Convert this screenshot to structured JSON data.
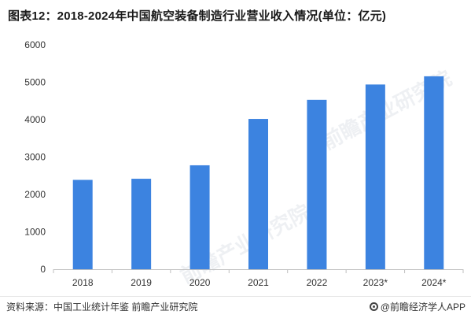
{
  "title": "图表12：2018-2024年中国航空装备制造行业营业收入情况(单位：亿元)",
  "chart_data": {
    "type": "bar",
    "categories": [
      "2018",
      "2019",
      "2020",
      "2021",
      "2022",
      "2023*",
      "2024*"
    ],
    "values": [
      2390,
      2420,
      2780,
      4020,
      4530,
      4940,
      5160
    ],
    "ylim": [
      0,
      6000
    ],
    "yticks": [
      0,
      1000,
      2000,
      3000,
      4000,
      5000,
      6000
    ],
    "bar_color": "#3c83e0",
    "grid": false
  },
  "watermark": "前瞻产业研究院",
  "footer": {
    "source": "资料来源：中国工业统计年鉴 前瞻产业研究院",
    "brand": "@前瞻经济学人APP"
  }
}
